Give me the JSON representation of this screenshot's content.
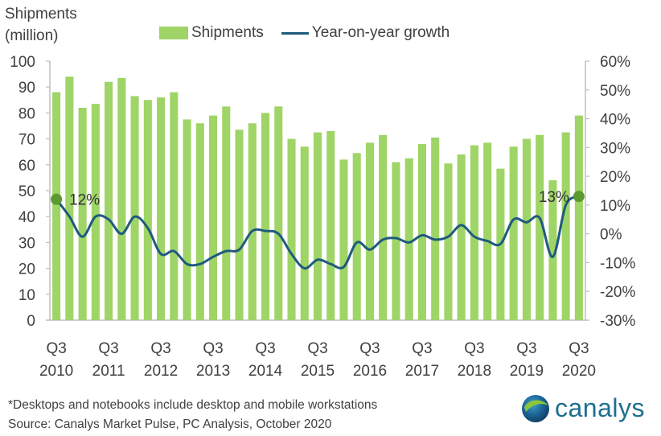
{
  "chart_data": {
    "type": "bar+line",
    "title": "",
    "ylabel": "Shipments\n(million)",
    "ylabel_lines": [
      "Shipments",
      "(million)"
    ],
    "y2label": "",
    "ylim": [
      0,
      100
    ],
    "y2lim": [
      -30,
      60
    ],
    "yticks": [
      "0",
      "10",
      "20",
      "30",
      "40",
      "50",
      "60",
      "70",
      "80",
      "90",
      "100"
    ],
    "y2ticks": [
      "-30%",
      "-20%",
      "-10%",
      "0%",
      "10%",
      "20%",
      "30%",
      "40%",
      "50%",
      "60%"
    ],
    "grid": false,
    "legend_position": "top-center",
    "legend": [
      {
        "name": "Shipments",
        "type": "bar",
        "color": "#9fd467"
      },
      {
        "name": "Year-on-year growth",
        "type": "line",
        "color": "#1f5a7e"
      }
    ],
    "xtick_labels": [
      {
        "q": "Q3",
        "year": "2010"
      },
      {
        "q": "Q3",
        "year": "2011"
      },
      {
        "q": "Q3",
        "year": "2012"
      },
      {
        "q": "Q3",
        "year": "2013"
      },
      {
        "q": "Q3",
        "year": "2014"
      },
      {
        "q": "Q3",
        "year": "2015"
      },
      {
        "q": "Q3",
        "year": "2016"
      },
      {
        "q": "Q3",
        "year": "2017"
      },
      {
        "q": "Q3",
        "year": "2018"
      },
      {
        "q": "Q3",
        "year": "2019"
      },
      {
        "q": "Q3",
        "year": "2020"
      }
    ],
    "categories": [
      "Q3 2010",
      "Q4 2010",
      "Q1 2011",
      "Q2 2011",
      "Q3 2011",
      "Q4 2011",
      "Q1 2012",
      "Q2 2012",
      "Q3 2012",
      "Q4 2012",
      "Q1 2013",
      "Q2 2013",
      "Q3 2013",
      "Q4 2013",
      "Q1 2014",
      "Q2 2014",
      "Q3 2014",
      "Q4 2014",
      "Q1 2015",
      "Q2 2015",
      "Q3 2015",
      "Q4 2015",
      "Q1 2016",
      "Q2 2016",
      "Q3 2016",
      "Q4 2016",
      "Q1 2017",
      "Q2 2017",
      "Q3 2017",
      "Q4 2017",
      "Q1 2018",
      "Q2 2018",
      "Q3 2018",
      "Q4 2018",
      "Q1 2019",
      "Q2 2019",
      "Q3 2019",
      "Q4 2019",
      "Q1 2020",
      "Q2 2020",
      "Q3 2020"
    ],
    "series": [
      {
        "name": "Shipments",
        "axis": "left",
        "unit": "million",
        "values": [
          88,
          94,
          82,
          83.5,
          92,
          93.5,
          86.5,
          85,
          86,
          88,
          77.5,
          76,
          79,
          82.5,
          73.5,
          76,
          80,
          82.5,
          70,
          67,
          72.5,
          73,
          62,
          64.5,
          68.5,
          71.5,
          61,
          62.5,
          68,
          70.5,
          60.5,
          64,
          67.5,
          68.5,
          58.5,
          67,
          70,
          71.5,
          54,
          72.5,
          79
        ]
      },
      {
        "name": "Year-on-year growth",
        "axis": "right",
        "unit": "%",
        "values": [
          12,
          6,
          -1,
          6,
          5,
          0,
          6,
          2,
          -7,
          -6,
          -10.5,
          -10.5,
          -8,
          -6,
          -5.5,
          1,
          1,
          0,
          -7,
          -12,
          -9,
          -10.5,
          -11.5,
          -3,
          -5.5,
          -2,
          -1.5,
          -3,
          -0.5,
          -2,
          -1,
          3,
          -1,
          -2.5,
          -3.5,
          5,
          4,
          5.5,
          -8,
          10,
          13
        ]
      }
    ],
    "annotations": [
      {
        "text": "12%",
        "category": "Q3 2010",
        "value": 12
      },
      {
        "text": "13%",
        "category": "Q3 2020",
        "value": 13
      }
    ]
  },
  "footnote": {
    "line1": "*Desktops and notebooks include desktop and mobile workstations",
    "line2": "Source: Canalys Market Pulse, PC Analysis, October 2020"
  },
  "logo": {
    "text": "canalys"
  }
}
